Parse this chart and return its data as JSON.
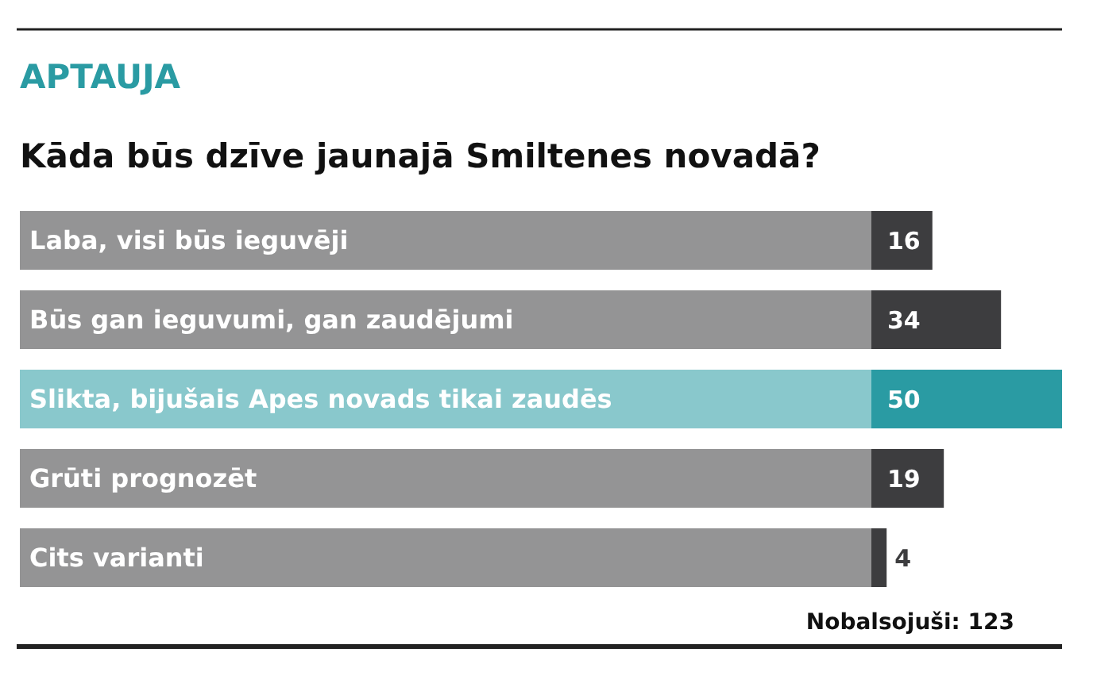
{
  "chart_data": {
    "type": "bar",
    "orientation": "horizontal",
    "title": "APTAUJA",
    "subtitle": "Kāda būs dzīve jaunajā Smiltenes novadā?",
    "categories": [
      "Laba, visi būs ieguvēji",
      "Būs gan ieguvumi, gan zaudējumi",
      "Slikta, bijušais Apes novads tikai zaudēs",
      "Grūti prognozēt",
      "Cits varianti"
    ],
    "values": [
      16,
      34,
      50,
      19,
      4
    ],
    "colors": [
      "#3d3d3f",
      "#3d3d3f",
      "#2a9ba3",
      "#3d3d3f",
      "#3d3d3f"
    ],
    "data_labels": true,
    "annotations": [
      "Nobalsojuši: 123"
    ]
  }
}
